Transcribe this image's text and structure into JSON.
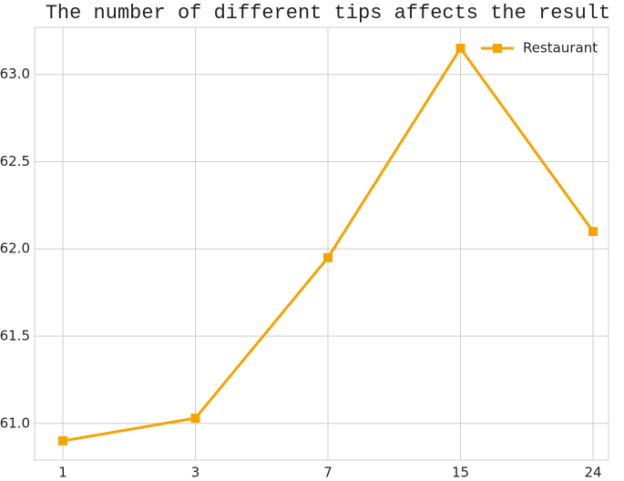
{
  "chart_data": {
    "type": "line",
    "title": "The number of different tips affects the result",
    "categories": [
      "1",
      "3",
      "7",
      "15",
      "24"
    ],
    "series": [
      {
        "name": "Restaurant",
        "color": "#f5a300",
        "values": [
          60.9,
          61.03,
          61.95,
          63.15,
          62.1
        ]
      }
    ],
    "ylim": [
      60.79,
      63.27
    ],
    "yticks": [
      {
        "value": 61,
        "label": "61.0"
      },
      61.5,
      {
        "value": 62,
        "label": "62.0"
      },
      62.5,
      {
        "value": 63,
        "label": "63.0"
      }
    ],
    "grid": true,
    "legend": "upper right"
  }
}
